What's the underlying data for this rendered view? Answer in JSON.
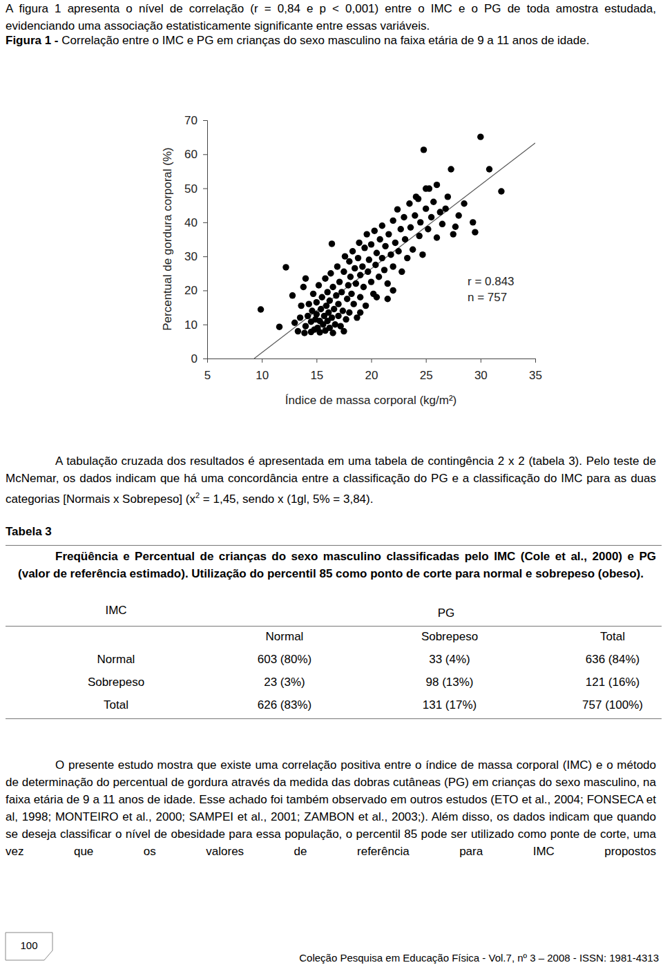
{
  "text": {
    "intro": "A figura 1 apresenta o nível de correlação (r = 0,84 e p < 0,001) entre o IMC e o PG de toda amostra estudada, evidenciando uma associação estatisticamente significante entre essas variáveis.",
    "figure_label": "Figura 1 -",
    "figure_caption": "Correlação entre o IMC e PG em crianças do sexo masculino na faixa etária de 9 a 11 anos de idade.",
    "paragraph2": [
      "A tabulação cruzada dos resultados é apresentada em uma tabela de contingência 2 x 2 (tabela 3). Pelo teste de McNemar, os dados indicam que há uma concordância entre a classificação do PG e a classificação do IMC para as duas categorias [Normais x Sobrepeso] (x",
      "2",
      " = 1,45, sendo x (1gl, 5% = 3,84)."
    ],
    "table_label": "Tabela 3",
    "table_caption": "Freqüência e Percentual de crianças do sexo masculino classificadas pelo IMC (Cole et al., 2000) e PG (valor de referência estimado). Utilização do percentil 85 como ponto de corte para normal e sobrepeso (obeso).",
    "conclusion": "O presente estudo mostra que existe uma correlação positiva entre o índice de massa corporal (IMC) e o método de determinação do percentual de gordura através da medida das dobras cutâneas (PG) em crianças do sexo masculino, na faixa etária de 9 a 11 anos de idade. Esse achado foi também observado em outros estudos (ETO et al., 2004; FONSECA et al, 1998; MONTEIRO et al., 2000; SAMPEI et al., 2001; ZAMBON  et al.,  2003;). Além disso, os dados indicam que quando se deseja classificar o nível de obesidade para essa população, o percentil 85 pode ser utilizado como ponte de corte, uma vez que os valores de referência para IMC propostos"
  },
  "chart_data": {
    "type": "scatter",
    "x_label": "Índice de massa corporal (kg/m²)",
    "y_label": "Percentual de gordura corporal (%)",
    "annotations": [
      "r = 0.843",
      "n = 757"
    ],
    "color": "#000000",
    "marker": "circle",
    "xlim": [
      5,
      35
    ],
    "xticks": [
      5,
      10,
      15,
      20,
      25,
      30,
      35
    ],
    "ylim": [
      0,
      70
    ],
    "yticks": [
      0,
      10,
      20,
      30,
      40,
      50,
      60,
      70
    ],
    "trend_line": {
      "x": [
        9.3,
        35
      ],
      "y": [
        0,
        63.3
      ]
    },
    "x": [
      9.9,
      11.6,
      12.2,
      12.8,
      13.0,
      13.3,
      13.5,
      13.6,
      13.8,
      13.9,
      14.0,
      14.2,
      14.3,
      14.5,
      14.5,
      14.6,
      14.7,
      14.8,
      14.9,
      15.0,
      15.0,
      15.1,
      15.2,
      15.3,
      15.3,
      15.4,
      15.5,
      15.6,
      15.7,
      15.8,
      15.8,
      15.9,
      16.0,
      16.0,
      16.1,
      16.2,
      16.2,
      16.3,
      16.4,
      16.4,
      16.5,
      16.6,
      16.7,
      16.8,
      16.9,
      17.0,
      17.0,
      17.1,
      17.2,
      17.3,
      17.4,
      17.5,
      17.6,
      17.7,
      17.8,
      17.9,
      18.0,
      18.0,
      18.1,
      18.2,
      18.3,
      18.4,
      18.5,
      18.6,
      18.7,
      18.8,
      18.9,
      19.0,
      19.0,
      19.2,
      19.3,
      19.4,
      19.5,
      19.6,
      19.7,
      19.8,
      20.0,
      20.0,
      20.2,
      20.3,
      20.4,
      20.5,
      20.7,
      20.8,
      21.0,
      21.0,
      21.2,
      21.3,
      21.5,
      21.6,
      21.8,
      22.0,
      22.0,
      22.2,
      22.4,
      22.5,
      22.7,
      22.8,
      23.0,
      23.1,
      23.3,
      23.5,
      23.6,
      23.8,
      24.0,
      24.1,
      24.3,
      24.4,
      24.5,
      24.7,
      24.8,
      25.0,
      25.0,
      25.2,
      25.3,
      25.5,
      25.7,
      26.0,
      26.0,
      26.3,
      26.5,
      26.8,
      27.0,
      27.3,
      27.5,
      27.7,
      28.0,
      28.5,
      29.3,
      29.5,
      30.0,
      30.8,
      31.9,
      20.5,
      19.0,
      21.5,
      14.0,
      16.5,
      17.5,
      22.0
    ],
    "values": [
      14.4,
      9.3,
      26.8,
      18.5,
      10.5,
      8.0,
      12.0,
      15.5,
      21.0,
      7.5,
      9.5,
      12.5,
      16.0,
      7.8,
      10.8,
      14.0,
      19.0,
      8.5,
      11.5,
      13.0,
      16.5,
      9.0,
      21.5,
      7.7,
      11.0,
      14.5,
      18.0,
      10.0,
      12.5,
      23.5,
      8.2,
      15.5,
      19.5,
      11.0,
      13.5,
      9.0,
      17.0,
      25.0,
      33.7,
      12.0,
      21.0,
      14.5,
      10.0,
      18.5,
      27.0,
      12.5,
      16.0,
      22.5,
      9.5,
      19.5,
      14.0,
      25.5,
      30.0,
      11.5,
      17.5,
      21.5,
      28.5,
      13.5,
      24.0,
      19.0,
      31.5,
      16.0,
      26.5,
      22.0,
      12.0,
      29.5,
      34.0,
      18.0,
      24.5,
      27.0,
      21.0,
      32.5,
      15.5,
      36.5,
      25.5,
      29.0,
      22.5,
      33.5,
      19.0,
      37.5,
      27.5,
      31.0,
      24.0,
      35.0,
      29.5,
      39.0,
      26.0,
      33.0,
      22.0,
      36.5,
      30.5,
      40.5,
      27.0,
      34.0,
      43.8,
      31.5,
      38.0,
      25.5,
      41.5,
      35.0,
      29.5,
      45.5,
      38.5,
      32.0,
      42.0,
      47.5,
      46.9,
      36.0,
      40.0,
      30.5,
      61.3,
      49.9,
      44.0,
      38.0,
      49.9,
      41.5,
      46.0,
      35.5,
      51.0,
      43.0,
      39.5,
      44.0,
      47.5,
      55.6,
      36.5,
      38.7,
      42.0,
      45.5,
      40.0,
      37.1,
      65.1,
      55.6,
      49.1,
      18.0,
      13.5,
      17.5,
      23.5,
      7.5,
      8.0,
      20.0
    ]
  },
  "table": {
    "row_header": "IMC",
    "column_header": "PG",
    "columns": [
      "Normal",
      "Sobrepeso",
      "Total"
    ],
    "rows": [
      [
        "Normal",
        "603 (80%)",
        "33 (4%)",
        "636 (84%)"
      ],
      [
        "Sobrepeso",
        "23 (3%)",
        "98 (13%)",
        "121 (16%)"
      ],
      [
        "Total",
        "626 (83%)",
        "131 (17%)",
        "757 (100%)"
      ]
    ]
  },
  "footer": {
    "page": "100",
    "journal": "Coleção Pesquisa em Educação Física - Vol.7, nº 3 – 2008 - ISSN: 1981-4313"
  }
}
